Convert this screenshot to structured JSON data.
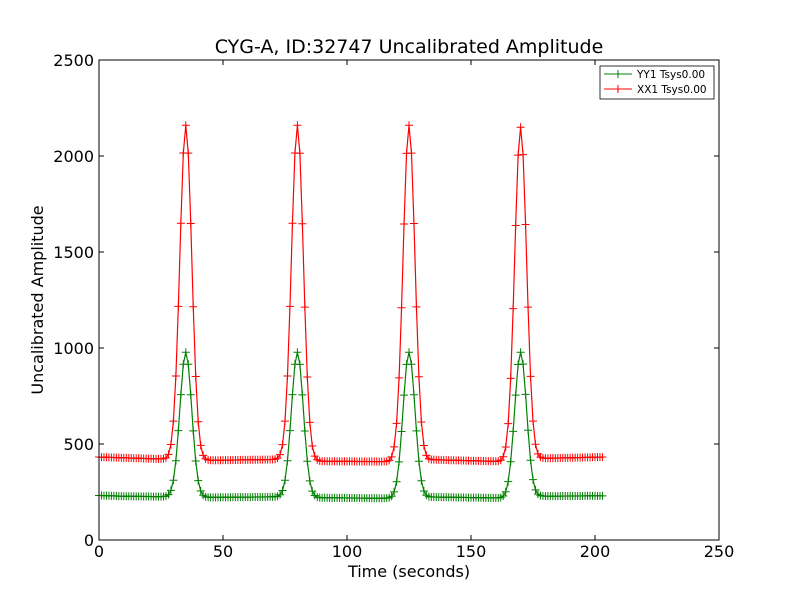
{
  "chart_data": {
    "type": "line",
    "title": "CYG-A, ID:32747 Uncalibrated Amplitude",
    "xlabel": "Time (seconds)",
    "ylabel": "Uncalibrated Amplitude",
    "xlim": [
      0,
      250
    ],
    "ylim": [
      0,
      2500
    ],
    "xticks": [
      0,
      50,
      100,
      150,
      200,
      250
    ],
    "yticks": [
      0,
      500,
      1000,
      1500,
      2000,
      2500
    ],
    "xtick_labels": [
      "0",
      "50",
      "100",
      "150",
      "200",
      "250"
    ],
    "ytick_labels": [
      "0",
      "500",
      "1000",
      "1500",
      "2000",
      "2500"
    ],
    "grid": false,
    "legend_position": "top-right",
    "marker": "plus",
    "series": [
      {
        "name": "YY1 Tsys0.00",
        "color": "#008000",
        "x_start": 0,
        "x_end": 203,
        "x_step": 1,
        "baseline_points": [
          [
            0,
            232
          ],
          [
            10,
            228
          ],
          [
            30,
            225
          ],
          [
            45,
            222
          ],
          [
            75,
            225
          ],
          [
            90,
            220
          ],
          [
            120,
            217
          ],
          [
            135,
            224
          ],
          [
            165,
            218
          ],
          [
            175,
            228
          ],
          [
            203,
            230
          ]
        ],
        "peaks": [
          {
            "center": 35,
            "height": 978
          },
          {
            "center": 80,
            "height": 978
          },
          {
            "center": 125,
            "height": 978
          },
          {
            "center": 170,
            "height": 978
          }
        ],
        "peak_sigma": 2.4
      },
      {
        "name": "XX1 Tsys0.00",
        "color": "#ff0000",
        "x_start": 0,
        "x_end": 203,
        "x_step": 1,
        "baseline_points": [
          [
            0,
            432
          ],
          [
            10,
            428
          ],
          [
            25,
            422
          ],
          [
            45,
            415
          ],
          [
            75,
            420
          ],
          [
            90,
            410
          ],
          [
            120,
            408
          ],
          [
            135,
            418
          ],
          [
            165,
            408
          ],
          [
            178,
            425
          ],
          [
            203,
            432
          ]
        ],
        "peaks": [
          {
            "center": 35,
            "height": 2160
          },
          {
            "center": 80,
            "height": 2160
          },
          {
            "center": 125,
            "height": 2160
          },
          {
            "center": 170,
            "height": 2150
          }
        ],
        "peak_sigma": 2.4
      }
    ]
  }
}
